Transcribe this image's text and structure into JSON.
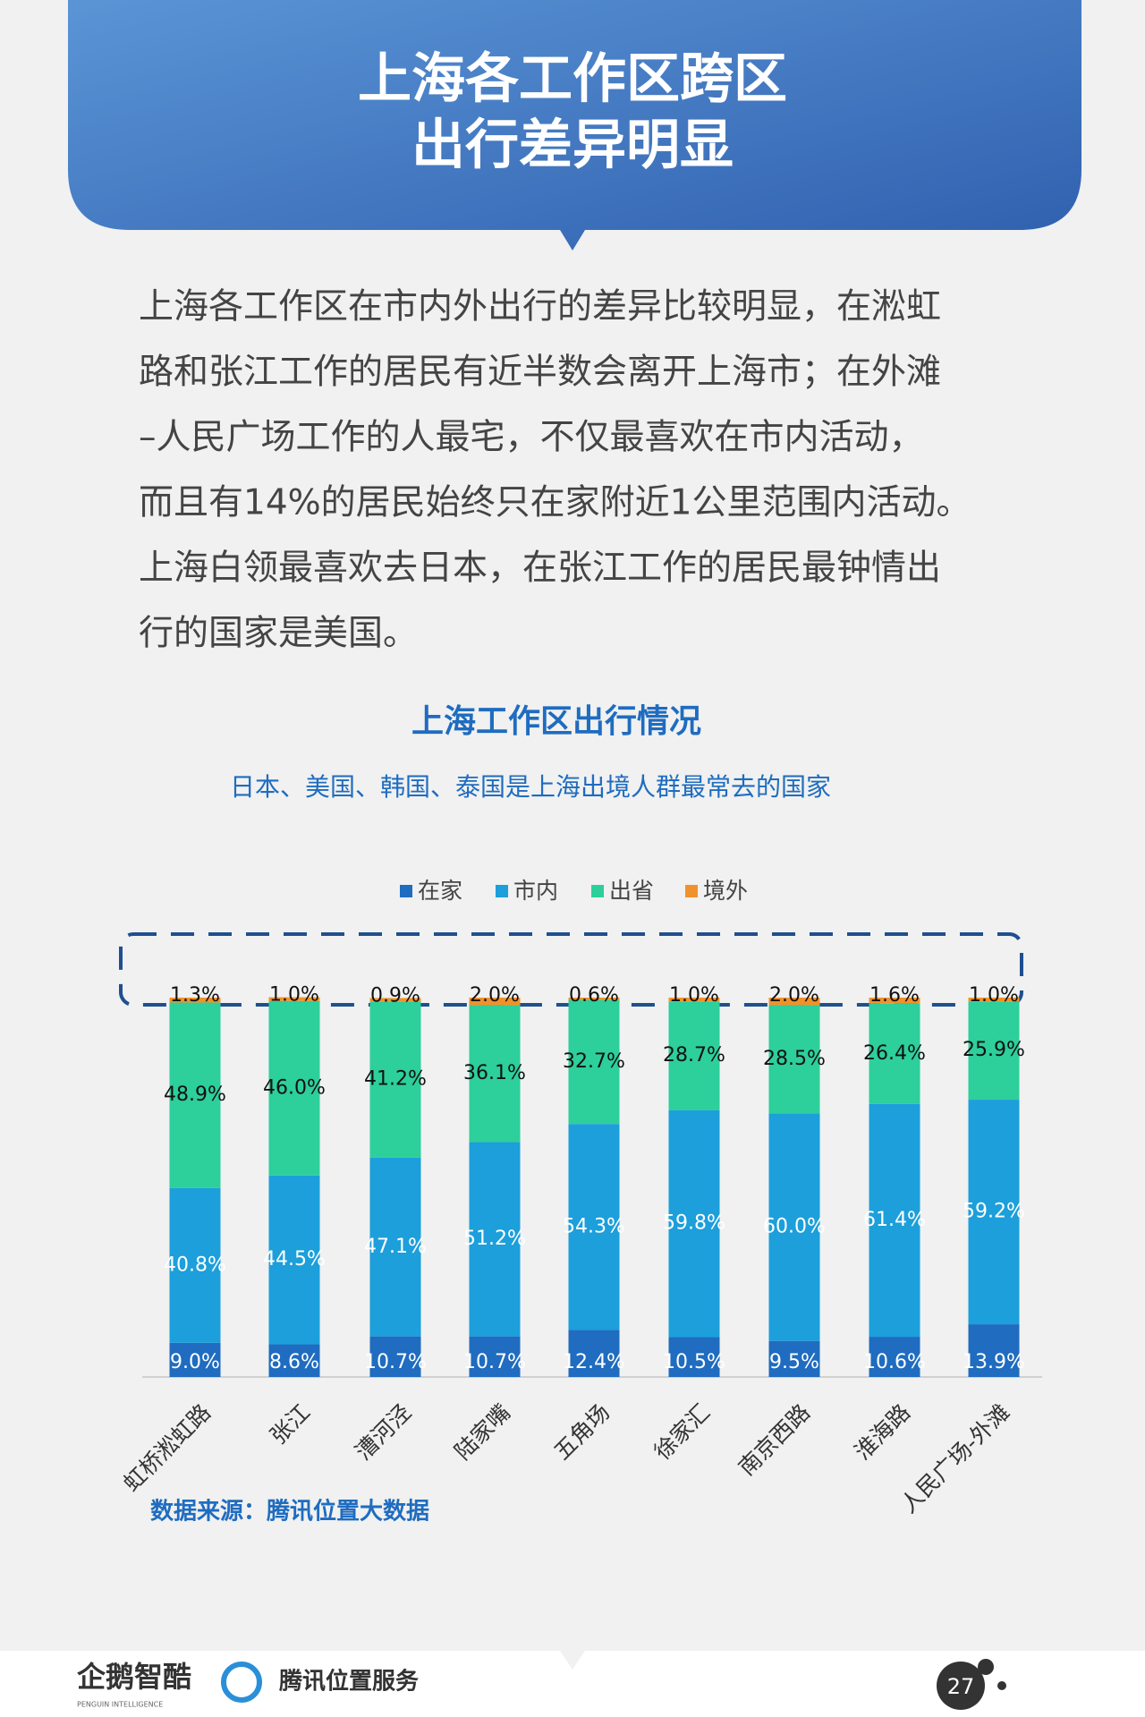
{
  "header": {
    "title": [
      "上海各工作区跨区",
      "出行差异明显"
    ]
  },
  "body": {
    "lines": [
      "上海各工作区在市内外出行的差异比较明显，在淞虹",
      "路和张江工作的居民有近半数会离开上海市；在外滩",
      "–人民广场工作的人最宅，不仅最喜欢在市内活动，",
      "而且有14%的居民始终只在家附近1公里范围内活动。",
      "上海白领最喜欢去日本，在张江工作的居民最钟情出",
      "行的国家是美国。"
    ]
  },
  "chart_data": {
    "type": "stacked_bar",
    "title": "上海工作区出行情况",
    "subtitle": "日本、美国、韩国、泰国是上海出境人群最常去的国家",
    "categories": [
      "虹桥淞虹路",
      "张江",
      "漕河泾",
      "陆家嘴",
      "五角场",
      "徐家汇",
      "南京西路",
      "淮海路",
      "人民广场-外滩"
    ],
    "series": [
      {
        "name": "在家",
        "color": "#1f6cc0",
        "values": [
          9.0,
          8.6,
          10.7,
          10.7,
          12.4,
          10.5,
          9.5,
          10.6,
          13.9
        ],
        "value_labels": [
          "9.0%",
          "8.6%",
          "10.7%",
          "10.7%",
          "12.4%",
          "10.5%",
          "9.5%",
          "10.6%",
          "13.9%"
        ]
      },
      {
        "name": "市内",
        "color": "#1c9fdb",
        "values": [
          40.8,
          44.5,
          47.1,
          51.2,
          54.3,
          59.8,
          60.0,
          61.4,
          59.2
        ],
        "value_labels": [
          "40.8%",
          "44.5%",
          "47.1%",
          "51.2%",
          "54.3%",
          "59.8%",
          "60.0%",
          "61.4%",
          "59.2%"
        ]
      },
      {
        "name": "出省",
        "color": "#2dcf9b",
        "values": [
          48.9,
          46.0,
          41.2,
          36.1,
          32.7,
          28.7,
          28.5,
          26.4,
          25.9
        ],
        "value_labels": [
          "48.9%",
          "46.0%",
          "41.2%",
          "36.1%",
          "32.7%",
          "28.7%",
          "28.5%",
          "26.4%",
          "25.9%"
        ]
      },
      {
        "name": "境外",
        "color": "#f0922c",
        "values": [
          1.3,
          1.0,
          0.9,
          2.0,
          0.6,
          1.0,
          2.0,
          1.6,
          1.0
        ],
        "value_labels": [
          "1.3%",
          "1.0%",
          "0.9%",
          "2.0%",
          "0.6%",
          "1.0%",
          "2.0%",
          "1.6%",
          "1.0%"
        ]
      }
    ],
    "source": "数据来源：腾讯位置大数据"
  },
  "footer": {
    "logo_left": "企鹅智酷",
    "logo_left_sub": "PENGUIN INTELLIGENCE",
    "logo_right": "腾讯位置服务",
    "page_number": "27"
  }
}
